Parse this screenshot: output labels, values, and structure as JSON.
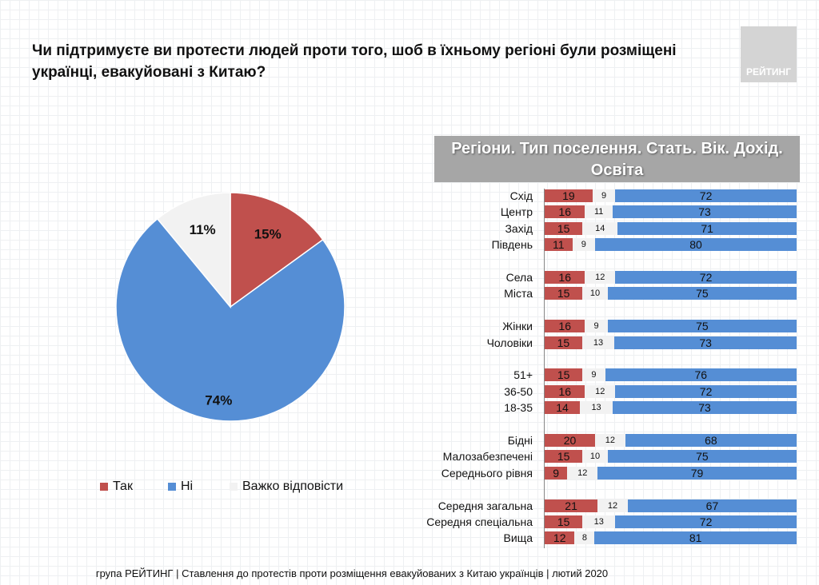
{
  "title": "Чи підтримуєте ви протести людей проти того, шоб в їхньому регіоні були розміщені українці, евакуйовані з Китаю?",
  "logo": "РЕЙТИНГ",
  "footer": "група РЕЙТИНГ | Ставлення до протестів проти розміщення евакуйованих з Китаю українців  | лютий 2020",
  "chart_data": [
    {
      "type": "pie",
      "series": [
        {
          "name": "Так",
          "value": 15,
          "color": "#c0504d"
        },
        {
          "name": "Ні",
          "value": 74,
          "color": "#558ed5"
        },
        {
          "name": "Важко відповісти",
          "value": 11,
          "color": "#f2f2f2"
        }
      ],
      "labels": [
        "15%",
        "74%",
        "11%"
      ],
      "legend": "bottom"
    },
    {
      "type": "bar",
      "stacked": true,
      "orientation": "horizontal",
      "title": "Регіони. Тип поселення. Стать. Вік. Дохід. Освіта",
      "series_names": [
        "Так",
        "Важко відповісти",
        "Ні"
      ],
      "colors": [
        "#c0504d",
        "#f2f2f2",
        "#558ed5"
      ],
      "categories": [
        "Схід",
        "Центр",
        "Захід",
        "Південь",
        "Села",
        "Міста",
        "Жінки",
        "Чоловіки",
        "51+",
        "36-50",
        "18-35",
        "Бідні",
        "Малозабезпечені",
        "Середнього рівня",
        "Середня загальна",
        "Середня спеціальна",
        "Вища"
      ],
      "groups": [
        4,
        2,
        2,
        3,
        3,
        3
      ],
      "values": [
        [
          19,
          9,
          72
        ],
        [
          16,
          11,
          73
        ],
        [
          15,
          14,
          71
        ],
        [
          11,
          9,
          80
        ],
        [
          16,
          12,
          72
        ],
        [
          15,
          10,
          75
        ],
        [
          16,
          9,
          75
        ],
        [
          15,
          13,
          73
        ],
        [
          15,
          9,
          76
        ],
        [
          16,
          12,
          72
        ],
        [
          14,
          13,
          73
        ],
        [
          20,
          12,
          68
        ],
        [
          15,
          10,
          75
        ],
        [
          9,
          12,
          79
        ],
        [
          21,
          12,
          67
        ],
        [
          15,
          13,
          72
        ],
        [
          12,
          8,
          81
        ]
      ]
    }
  ]
}
